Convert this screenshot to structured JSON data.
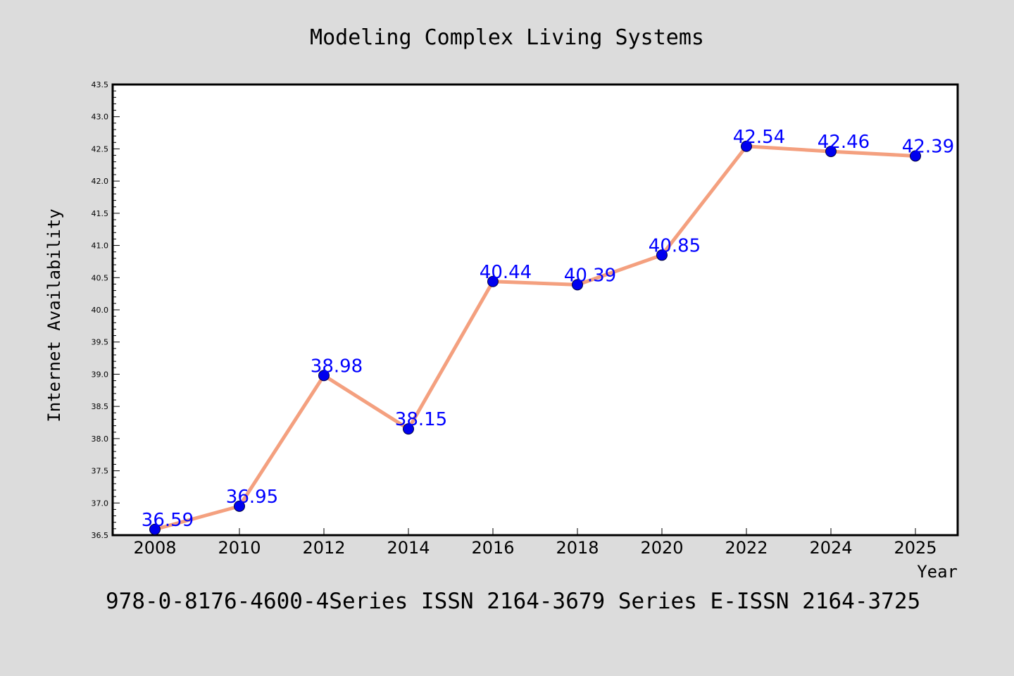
{
  "chart_data": {
    "type": "line",
    "title": "Modeling Complex Living Systems",
    "xlabel": "Year",
    "ylabel": "Internet Availability",
    "categories": [
      "2008",
      "2010",
      "2012",
      "2014",
      "2016",
      "2018",
      "2020",
      "2022",
      "2024",
      "2025"
    ],
    "series": [
      {
        "values": [
          36.59,
          36.95,
          38.98,
          38.15,
          40.44,
          40.39,
          40.85,
          42.54,
          42.46,
          42.39
        ],
        "labels": [
          "36.59",
          "36.95",
          "38.98",
          "38.15",
          "40.44",
          "40.39",
          "40.85",
          "42.54",
          "42.46",
          "42.39"
        ]
      }
    ],
    "ylim": [
      36.5,
      43.5
    ],
    "yticks": [
      "36.5",
      "37.0",
      "37.5",
      "38.0",
      "38.5",
      "39.0",
      "39.5",
      "40.0",
      "40.5",
      "41.0",
      "41.5",
      "42.0",
      "42.5",
      "43.0",
      "43.5"
    ],
    "grid": false,
    "legend": "none",
    "colors": {
      "background": "#dcdcdc",
      "plot_background": "#ffffff",
      "line": "#f4a07f",
      "marker": "#0000ee",
      "data_label": "#0000ff"
    }
  },
  "footer": {
    "text": "978-0-8176-4600-4Series ISSN 2164-3679 Series E-ISSN 2164-3725"
  }
}
